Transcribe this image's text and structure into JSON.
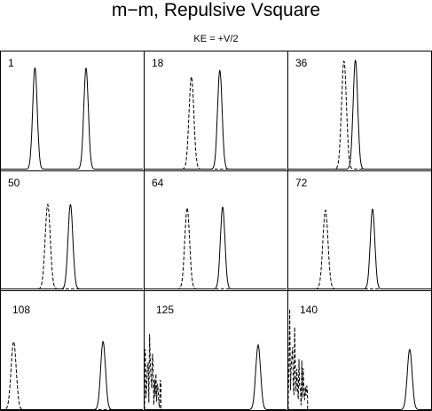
{
  "chart_data": {
    "type": "line",
    "title": "m−m,  Repulsive Vsquare",
    "subtitle": "KE = +V/2",
    "xlim": [
      0,
      1
    ],
    "ylim": [
      0,
      1
    ],
    "panels": [
      {
        "label": "1",
        "series": [
          {
            "style": "solid",
            "peaks": [
              {
                "x": 0.24,
                "h": 0.9,
                "w": 0.016
              },
              {
                "x": 0.6,
                "h": 0.9,
                "w": 0.016
              }
            ]
          }
        ]
      },
      {
        "label": "18",
        "series": [
          {
            "style": "solid",
            "peaks": [
              {
                "x": 0.53,
                "h": 0.88,
                "w": 0.016
              }
            ]
          },
          {
            "style": "dashed",
            "peaks": [
              {
                "x": 0.33,
                "h": 0.82,
                "w": 0.017
              }
            ]
          }
        ]
      },
      {
        "label": "36",
        "series": [
          {
            "style": "solid",
            "peaks": [
              {
                "x": 0.47,
                "h": 0.97,
                "w": 0.016
              }
            ]
          },
          {
            "style": "dashed",
            "peaks": [
              {
                "x": 0.39,
                "h": 0.96,
                "w": 0.017
              }
            ]
          }
        ]
      },
      {
        "label": "50",
        "series": [
          {
            "style": "solid",
            "peaks": [
              {
                "x": 0.49,
                "h": 0.75,
                "w": 0.017
              }
            ]
          },
          {
            "style": "dashed",
            "peaks": [
              {
                "x": 0.33,
                "h": 0.75,
                "w": 0.018
              }
            ]
          }
        ]
      },
      {
        "label": "64",
        "series": [
          {
            "style": "solid",
            "peaks": [
              {
                "x": 0.55,
                "h": 0.73,
                "w": 0.016
              }
            ]
          },
          {
            "style": "dashed",
            "peaks": [
              {
                "x": 0.3,
                "h": 0.72,
                "w": 0.017
              }
            ]
          }
        ]
      },
      {
        "label": "72",
        "series": [
          {
            "style": "solid",
            "peaks": [
              {
                "x": 0.59,
                "h": 0.71,
                "w": 0.016
              }
            ]
          },
          {
            "style": "dashed",
            "peaks": [
              {
                "x": 0.26,
                "h": 0.7,
                "w": 0.018
              }
            ]
          }
        ]
      },
      {
        "label": "108",
        "series": [
          {
            "style": "solid",
            "peaks": [
              {
                "x": 0.72,
                "h": 0.6,
                "w": 0.017
              }
            ]
          },
          {
            "style": "dashed",
            "peaks": [
              {
                "x": 0.09,
                "h": 0.6,
                "w": 0.018
              }
            ]
          }
        ]
      },
      {
        "label": "125",
        "series": [
          {
            "style": "solid",
            "peaks": [
              {
                "x": 0.8,
                "h": 0.57,
                "w": 0.017
              }
            ]
          },
          {
            "style": "dashed",
            "peaks": [],
            "noise": {
              "x0": 0.0,
              "x1": 0.12,
              "h": 0.98
            }
          }
        ]
      },
      {
        "label": "140",
        "series": [
          {
            "style": "solid",
            "peaks": [
              {
                "x": 0.85,
                "h": 0.53,
                "w": 0.017
              }
            ]
          },
          {
            "style": "dashed",
            "peaks": [],
            "noise": {
              "x0": 0.0,
              "x1": 0.14,
              "h": 0.98
            }
          }
        ]
      }
    ]
  }
}
